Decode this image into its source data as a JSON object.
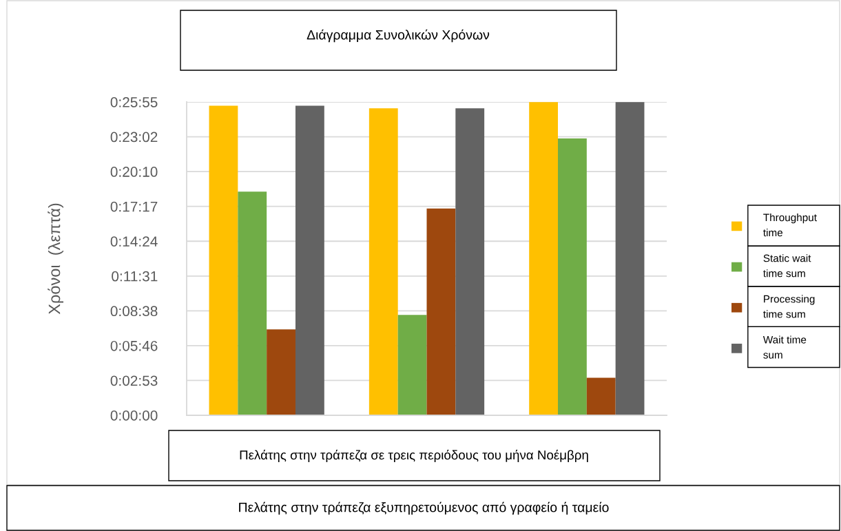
{
  "chart_data": {
    "type": "bar",
    "title": "Διάγραμμα Συνολικών Χρόνων",
    "xlabel": "Πελάτης στην τράπεζα σε τρεις περιόδους του μήνα Νοέμβρη",
    "ylabel": "Χρόνοι  (λεπτά)",
    "annotations": [
      "Πελάτης στην τράπεζα εξυπηρετούμενος από γραφείο ή ταμείο"
    ],
    "categories": [
      null,
      null,
      null
    ],
    "series": [
      {
        "name": "Throughput time",
        "color": "#ffc000",
        "values": [
          25.6,
          25.4,
          25.9
        ]
      },
      {
        "name": "Static wait time sum",
        "color": "#70ad47",
        "values": [
          18.5,
          8.3,
          22.9
        ]
      },
      {
        "name": "Processing time sum",
        "color": "#9e480e",
        "values": [
          7.1,
          17.1,
          3.1
        ]
      },
      {
        "name": "Wait time sum",
        "color": "#636363",
        "values": [
          25.6,
          25.4,
          25.9
        ]
      }
    ],
    "ylim": [
      0,
      25.92
    ],
    "yticks": [
      {
        "value": 0,
        "label": "0:00:00"
      },
      {
        "value": 2.88,
        "label": "0:02:53"
      },
      {
        "value": 5.76,
        "label": "0:05:46"
      },
      {
        "value": 8.64,
        "label": "0:08:38"
      },
      {
        "value": 11.52,
        "label": "0:11:31"
      },
      {
        "value": 14.4,
        "label": "0:14:24"
      },
      {
        "value": 17.28,
        "label": "0:17:17"
      },
      {
        "value": 20.16,
        "label": "0:20:10"
      },
      {
        "value": 23.04,
        "label": "0:23:02"
      },
      {
        "value": 25.92,
        "label": "0:25:55"
      }
    ],
    "grid": "y",
    "legend": "right",
    "tick_labels": "y"
  }
}
